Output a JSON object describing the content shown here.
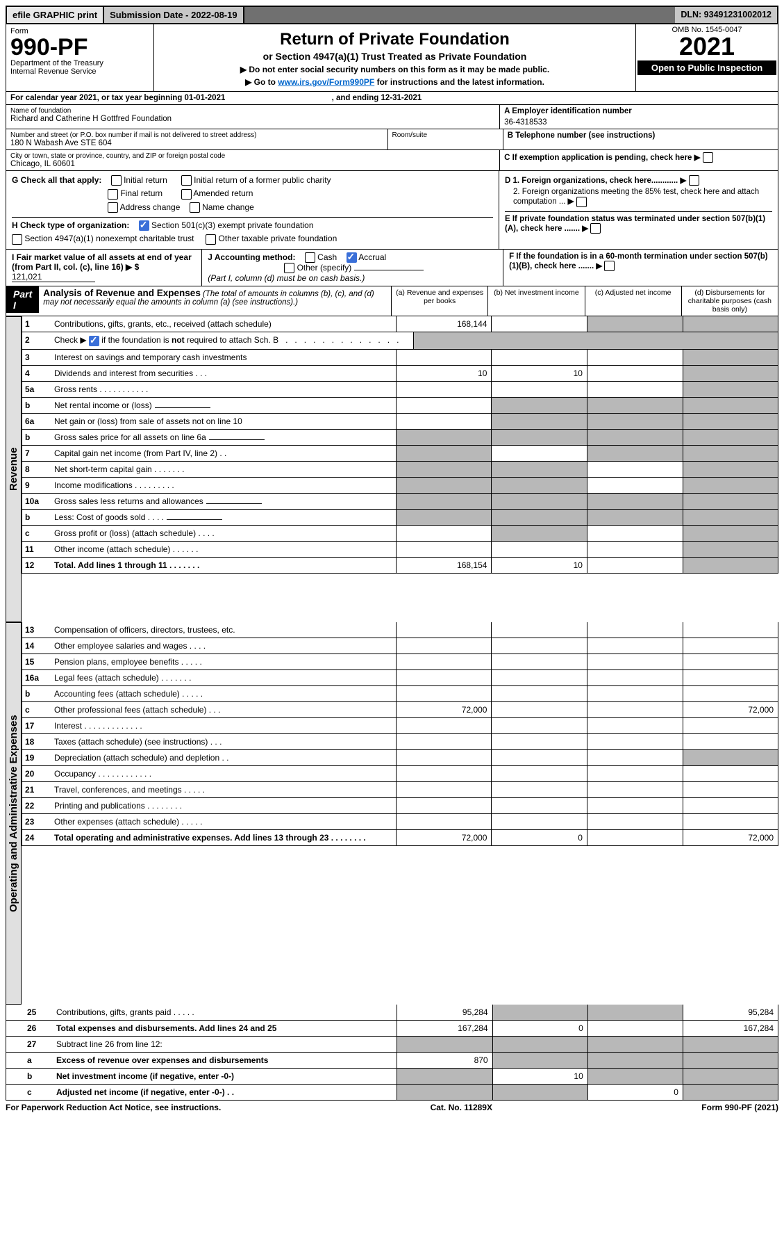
{
  "topbar": {
    "efile": "efile GRAPHIC print",
    "submission_label": "Submission Date - 2022-08-19",
    "dln": "DLN: 93491231002012"
  },
  "header": {
    "form_word": "Form",
    "form_number": "990-PF",
    "dept": "Department of the Treasury",
    "irs": "Internal Revenue Service",
    "title": "Return of Private Foundation",
    "subtitle": "or Section 4947(a)(1) Trust Treated as Private Foundation",
    "note1": "▶ Do not enter social security numbers on this form as it may be made public.",
    "note2_pre": "▶ Go to ",
    "note2_link": "www.irs.gov/Form990PF",
    "note2_post": " for instructions and the latest information.",
    "omb": "OMB No. 1545-0047",
    "year": "2021",
    "open": "Open to Public Inspection"
  },
  "calendar": {
    "text_pre": "For calendar year 2021, or tax year beginning ",
    "begin": "01-01-2021",
    "mid": " , and ending ",
    "end": "12-31-2021"
  },
  "entity": {
    "name_label": "Name of foundation",
    "name": "Richard and Catherine H Gottfred Foundation",
    "addr_label": "Number and street (or P.O. box number if mail is not delivered to street address)",
    "addr": "180 N Wabash Ave STE 604",
    "room_label": "Room/suite",
    "city_label": "City or town, state or province, country, and ZIP or foreign postal code",
    "city": "Chicago, IL  60601",
    "ein_label": "A Employer identification number",
    "ein": "36-4318533",
    "tel_label": "B Telephone number (see instructions)",
    "c_label": "C If exemption application is pending, check here",
    "g_label": "G Check all that apply:",
    "g_opts": [
      "Initial return",
      "Final return",
      "Address change",
      "Initial return of a former public charity",
      "Amended return",
      "Name change"
    ],
    "h_label": "H Check type of organization:",
    "h_opts": [
      "Section 501(c)(3) exempt private foundation",
      "Section 4947(a)(1) nonexempt charitable trust",
      "Other taxable private foundation"
    ],
    "i_label": "I Fair market value of all assets at end of year (from Part II, col. (c), line 16) ▶ $",
    "i_value": "121,021",
    "j_label": "J Accounting method:",
    "j_opts": [
      "Cash",
      "Accrual",
      "Other (specify)"
    ],
    "j_note": "(Part I, column (d) must be on cash basis.)",
    "d1": "D 1. Foreign organizations, check here............",
    "d2": "2. Foreign organizations meeting the 85% test, check here and attach computation ...",
    "e": "E If private foundation status was terminated under section 507(b)(1)(A), check here .......",
    "f": "F If the foundation is in a 60-month termination under section 507(b)(1)(B), check here .......",
    "arrow": "▶"
  },
  "part1": {
    "label": "Part I",
    "title": "Analysis of Revenue and Expenses",
    "title_note": " (The total of amounts in columns (b), (c), and (d) may not necessarily equal the amounts in column (a) (see instructions).)",
    "cols": {
      "a": "(a) Revenue and expenses per books",
      "b": "(b) Net investment income",
      "c": "(c) Adjusted net income",
      "d": "(d) Disbursements for charitable purposes (cash basis only)"
    }
  },
  "sections": {
    "revenue": "Revenue",
    "opadmin": "Operating and Administrative Expenses"
  },
  "lines": [
    {
      "n": "1",
      "d": "Contributions, gifts, grants, etc., received (attach schedule)",
      "a": "168,144",
      "b": "",
      "c": "grey",
      "dcol": "grey"
    },
    {
      "n": "2",
      "d": "Check ▶ ☑ if the foundation is not required to attach Sch. B   .  .  .  .  .  .  .  .  .  .  .  .  .  .  .",
      "a": "",
      "b": "",
      "c": "",
      "dcol": "",
      "allgrey": true
    },
    {
      "n": "3",
      "d": "Interest on savings and temporary cash investments",
      "a": "",
      "b": "",
      "c": "",
      "dcol": "grey"
    },
    {
      "n": "4",
      "d": "Dividends and interest from securities   .   .   .",
      "a": "10",
      "b": "10",
      "c": "",
      "dcol": "grey"
    },
    {
      "n": "5a",
      "d": "Gross rents   .   .   .   .   .   .   .   .   .   .   .",
      "a": "",
      "b": "",
      "c": "",
      "dcol": "grey"
    },
    {
      "n": "b",
      "d": "Net rental income or (loss)",
      "a": "",
      "b": "grey",
      "c": "grey",
      "dcol": "grey",
      "inline": true
    },
    {
      "n": "6a",
      "d": "Net gain or (loss) from sale of assets not on line 10",
      "a": "",
      "b": "grey",
      "c": "grey",
      "dcol": "grey"
    },
    {
      "n": "b",
      "d": "Gross sales price for all assets on line 6a",
      "a": "grey",
      "b": "grey",
      "c": "grey",
      "dcol": "grey",
      "inline": true
    },
    {
      "n": "7",
      "d": "Capital gain net income (from Part IV, line 2)   .   .",
      "a": "grey",
      "b": "",
      "c": "grey",
      "dcol": "grey"
    },
    {
      "n": "8",
      "d": "Net short-term capital gain   .   .   .   .   .   .   .",
      "a": "grey",
      "b": "grey",
      "c": "",
      "dcol": "grey"
    },
    {
      "n": "9",
      "d": "Income modifications   .   .   .   .   .   .   .   .   .",
      "a": "grey",
      "b": "grey",
      "c": "",
      "dcol": "grey"
    },
    {
      "n": "10a",
      "d": "Gross sales less returns and allowances",
      "a": "grey",
      "b": "grey",
      "c": "grey",
      "dcol": "grey",
      "inline": true
    },
    {
      "n": "b",
      "d": "Less: Cost of goods sold   .   .   .   .",
      "a": "grey",
      "b": "grey",
      "c": "grey",
      "dcol": "grey",
      "inline": true
    },
    {
      "n": "c",
      "d": "Gross profit or (loss) (attach schedule)   .   .   .   .",
      "a": "",
      "b": "grey",
      "c": "",
      "dcol": "grey"
    },
    {
      "n": "11",
      "d": "Other income (attach schedule)   .   .   .   .   .   .",
      "a": "",
      "b": "",
      "c": "",
      "dcol": "grey"
    },
    {
      "n": "12",
      "d": "Total. Add lines 1 through 11   .   .   .   .   .   .   .",
      "a": "168,154",
      "b": "10",
      "c": "",
      "dcol": "grey",
      "bold": true
    },
    {
      "n": "13",
      "d": "Compensation of officers, directors, trustees, etc.",
      "a": "",
      "b": "",
      "c": "",
      "dcol": ""
    },
    {
      "n": "14",
      "d": "Other employee salaries and wages   .   .   .   .",
      "a": "",
      "b": "",
      "c": "",
      "dcol": ""
    },
    {
      "n": "15",
      "d": "Pension plans, employee benefits   .   .   .   .   .",
      "a": "",
      "b": "",
      "c": "",
      "dcol": ""
    },
    {
      "n": "16a",
      "d": "Legal fees (attach schedule)   .   .   .   .   .   .   .",
      "a": "",
      "b": "",
      "c": "",
      "dcol": ""
    },
    {
      "n": "b",
      "d": "Accounting fees (attach schedule)   .   .   .   .   .",
      "a": "",
      "b": "",
      "c": "",
      "dcol": ""
    },
    {
      "n": "c",
      "d": "Other professional fees (attach schedule)   .   .   .",
      "a": "72,000",
      "b": "",
      "c": "",
      "dcol": "72,000"
    },
    {
      "n": "17",
      "d": "Interest   .   .   .   .   .   .   .   .   .   .   .   .   .",
      "a": "",
      "b": "",
      "c": "",
      "dcol": ""
    },
    {
      "n": "18",
      "d": "Taxes (attach schedule) (see instructions)   .   .   .",
      "a": "",
      "b": "",
      "c": "",
      "dcol": ""
    },
    {
      "n": "19",
      "d": "Depreciation (attach schedule) and depletion   .   .",
      "a": "",
      "b": "",
      "c": "",
      "dcol": "grey"
    },
    {
      "n": "20",
      "d": "Occupancy   .   .   .   .   .   .   .   .   .   .   .   .",
      "a": "",
      "b": "",
      "c": "",
      "dcol": ""
    },
    {
      "n": "21",
      "d": "Travel, conferences, and meetings   .   .   .   .   .",
      "a": "",
      "b": "",
      "c": "",
      "dcol": ""
    },
    {
      "n": "22",
      "d": "Printing and publications   .   .   .   .   .   .   .   .",
      "a": "",
      "b": "",
      "c": "",
      "dcol": ""
    },
    {
      "n": "23",
      "d": "Other expenses (attach schedule)   .   .   .   .   .",
      "a": "",
      "b": "",
      "c": "",
      "dcol": ""
    },
    {
      "n": "24",
      "d": "Total operating and administrative expenses. Add lines 13 through 23   .   .   .   .   .   .   .   .",
      "a": "72,000",
      "b": "0",
      "c": "",
      "dcol": "72,000",
      "bold": true
    },
    {
      "n": "25",
      "d": "Contributions, gifts, grants paid   .   .   .   .   .",
      "a": "95,284",
      "b": "grey",
      "c": "grey",
      "dcol": "95,284"
    },
    {
      "n": "26",
      "d": "Total expenses and disbursements. Add lines 24 and 25",
      "a": "167,284",
      "b": "0",
      "c": "",
      "dcol": "167,284",
      "bold": true
    },
    {
      "n": "27",
      "d": "Subtract line 26 from line 12:",
      "a": "grey",
      "b": "grey",
      "c": "grey",
      "dcol": "grey"
    },
    {
      "n": "a",
      "d": "Excess of revenue over expenses and disbursements",
      "a": "870",
      "b": "grey",
      "c": "grey",
      "dcol": "grey",
      "bold": true
    },
    {
      "n": "b",
      "d": "Net investment income (if negative, enter -0-)",
      "a": "grey",
      "b": "10",
      "c": "grey",
      "dcol": "grey",
      "bold": true
    },
    {
      "n": "c",
      "d": "Adjusted net income (if negative, enter -0-)   .   .",
      "a": "grey",
      "b": "grey",
      "c": "0",
      "dcol": "grey",
      "bold": true
    }
  ],
  "footer": {
    "left": "For Paperwork Reduction Act Notice, see instructions.",
    "mid": "Cat. No. 11289X",
    "right": "Form 990-PF (2021)"
  },
  "colors": {
    "grey_cell": "#b8b8b8",
    "header_grey": "#c8c8c8",
    "link": "#0066cc",
    "check_blue": "#3a6fd8"
  }
}
